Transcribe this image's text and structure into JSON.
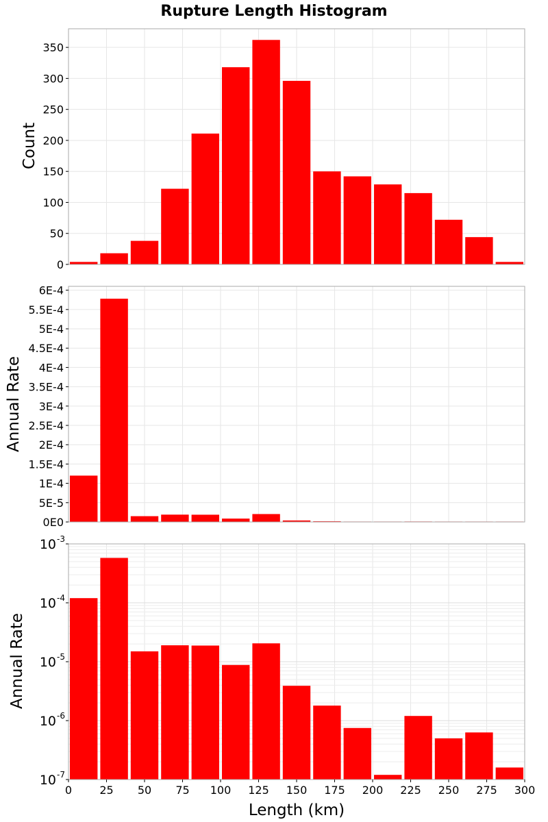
{
  "title": "Rupture Length Histogram",
  "colors": {
    "bar": "#ff0000",
    "grid": "#e6e6e6",
    "frame": "#aaaaaa"
  },
  "chart_data": [
    {
      "type": "bar",
      "ylabel": "Count",
      "yscale": "linear",
      "ylim": [
        0,
        380
      ],
      "yticks": [
        0,
        50,
        100,
        150,
        200,
        250,
        300,
        350
      ],
      "ytick_labels": [
        "0",
        "50",
        "100",
        "150",
        "200",
        "250",
        "300",
        "350"
      ],
      "bin_width": 20,
      "bin_starts": [
        0,
        20,
        40,
        60,
        80,
        100,
        120,
        140,
        160,
        180,
        200,
        220,
        240,
        260,
        280
      ],
      "values": [
        4,
        18,
        38,
        122,
        211,
        318,
        362,
        296,
        150,
        142,
        129,
        115,
        72,
        44,
        4
      ]
    },
    {
      "type": "bar",
      "ylabel": "Annual Rate",
      "yscale": "linear",
      "ylim": [
        0,
        0.00061
      ],
      "yticks": [
        0,
        5e-05,
        0.0001,
        0.00015,
        0.0002,
        0.00025,
        0.0003,
        0.00035,
        0.0004,
        0.00045,
        0.0005,
        0.00055,
        0.0006
      ],
      "ytick_labels": [
        "0E0",
        "5E-5",
        "1E-4",
        "1.5E-4",
        "2E-4",
        "2.5E-4",
        "3E-4",
        "3.5E-4",
        "4E-4",
        "4.5E-4",
        "5E-4",
        "5.5E-4",
        "6E-4"
      ],
      "bin_width": 20,
      "bin_starts": [
        0,
        20,
        40,
        60,
        80,
        100,
        120,
        140,
        160,
        180,
        200,
        220,
        240,
        260,
        280
      ],
      "values": [
        0.00012,
        0.000578,
        1.5e-05,
        1.9e-05,
        1.88e-05,
        8.8e-06,
        2.05e-05,
        3.9e-06,
        1.8e-06,
        7.5e-07,
        1.2e-07,
        1.2e-06,
        5e-07,
        6.3e-07,
        1.6e-07
      ]
    },
    {
      "type": "bar",
      "ylabel": "Annual Rate",
      "yscale": "log",
      "ylim": [
        1e-07,
        0.001
      ],
      "yticks_major": [
        {
          "value": 1e-07,
          "base": "10",
          "exp": "-7"
        },
        {
          "value": 1e-06,
          "base": "10",
          "exp": "-6"
        },
        {
          "value": 1e-05,
          "base": "10",
          "exp": "-5"
        },
        {
          "value": 0.0001,
          "base": "10",
          "exp": "-4"
        },
        {
          "value": 0.001,
          "base": "10",
          "exp": "-3"
        }
      ],
      "bin_width": 20,
      "bin_starts": [
        0,
        20,
        40,
        60,
        80,
        100,
        120,
        140,
        160,
        180,
        200,
        220,
        240,
        260,
        280
      ],
      "values": [
        0.00012,
        0.000578,
        1.5e-05,
        1.9e-05,
        1.88e-05,
        8.8e-06,
        2.05e-05,
        3.9e-06,
        1.8e-06,
        7.5e-07,
        1.2e-07,
        1.2e-06,
        5e-07,
        6.3e-07,
        1.6e-07
      ],
      "xlabel": "Length (km)",
      "xlim": [
        0,
        300
      ],
      "xticks": [
        0,
        25,
        50,
        75,
        100,
        125,
        150,
        175,
        200,
        225,
        250,
        275,
        300
      ],
      "xtick_labels": [
        "0",
        "25",
        "50",
        "75",
        "100",
        "125",
        "150",
        "175",
        "200",
        "225",
        "250",
        "275",
        "300"
      ]
    }
  ]
}
